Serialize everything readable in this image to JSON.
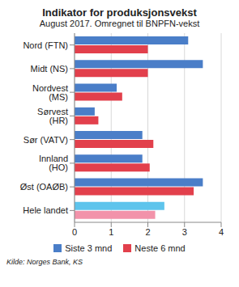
{
  "chart_data": {
    "type": "bar",
    "title": "Indikator for produksjonsvekst",
    "subtitle": "August 2017. Omregnet til BNPFN-vekst",
    "source": "Kilde: Norges Bank, KS",
    "orientation": "horizontal",
    "categories": [
      "Nord (FTN)",
      "Midt (NS)",
      "Nordvest (MS)",
      "Sørvest (HR)",
      "Sør (VATV)",
      "Innland (HO)",
      "Øst (OAØB)",
      "Hele landet"
    ],
    "series": [
      {
        "name": "Siste 3 mnd",
        "colors": [
          "#4a7ec8",
          "#4a7ec8",
          "#4a7ec8",
          "#4a7ec8",
          "#4a7ec8",
          "#4a7ec8",
          "#4a7ec8",
          "#5ec4ec"
        ],
        "values": [
          3.1,
          3.5,
          1.15,
          0.55,
          1.85,
          1.85,
          3.5,
          2.45
        ]
      },
      {
        "name": "Neste 6 mnd",
        "colors": [
          "#e2404c",
          "#e2404c",
          "#e2404c",
          "#e2404c",
          "#e2404c",
          "#e2404c",
          "#e2404c",
          "#f293aa"
        ],
        "values": [
          2.0,
          2.0,
          1.3,
          0.65,
          2.15,
          2.05,
          3.25,
          2.2
        ]
      }
    ],
    "xlim": [
      0,
      4
    ],
    "xticks": [
      0,
      1,
      2,
      3,
      4
    ],
    "grid": true,
    "legend": "bottom"
  }
}
